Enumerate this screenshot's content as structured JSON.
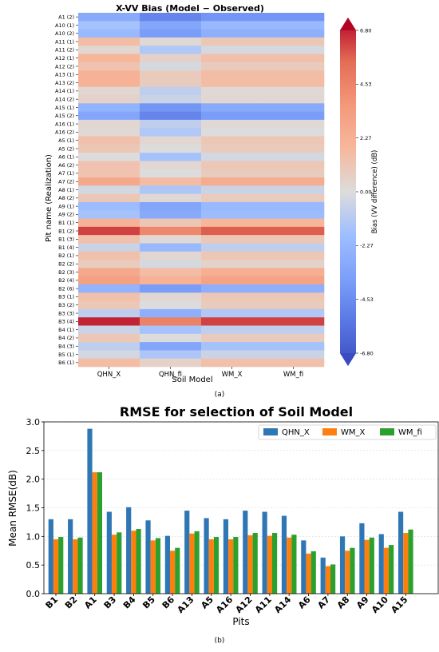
{
  "chart_data": [
    {
      "type": "heatmap",
      "title": "X-VV Bias (Model − Observed)",
      "xlabel": "Soil Model",
      "ylabel": "Pit name (Realization)",
      "columns": [
        "QHN_X",
        "QHN_fi",
        "WM_X",
        "WM_fi"
      ],
      "rows": [
        "A1 (2)",
        "A10 (1)",
        "A10 (2)",
        "A11 (1)",
        "A11 (2)",
        "A12 (1)",
        "A12 (2)",
        "A13 (1)",
        "A13 (2)",
        "A14 (1)",
        "A14 (2)",
        "A15 (1)",
        "A15 (2)",
        "A16 (1)",
        "A16 (2)",
        "A5 (1)",
        "A5 (2)",
        "A6 (1)",
        "A6 (2)",
        "A7 (1)",
        "A7 (2)",
        "A8 (1)",
        "A8 (2)",
        "A9 (1)",
        "A9 (2)",
        "B1 (1)",
        "B1 (2)",
        "B1 (3)",
        "B1 (4)",
        "B2 (1)",
        "B2 (2)",
        "B2 (3)",
        "B2 (4)",
        "B2 (6)",
        "B3 (1)",
        "B3 (2)",
        "B3 (3)",
        "B3 (4)",
        "B4 (1)",
        "B4 (2)",
        "B4 (3)",
        "B5 (1)",
        "B6 (1)"
      ],
      "values": [
        [
          -2.8,
          -4.5,
          -3.8,
          -3.8
        ],
        [
          -1.5,
          -3.0,
          -2.0,
          -2.0
        ],
        [
          -2.0,
          -3.5,
          -2.5,
          -2.5
        ],
        [
          1.5,
          0.2,
          1.0,
          1.0
        ],
        [
          0.3,
          -1.2,
          -0.2,
          -0.2
        ],
        [
          1.8,
          0.5,
          1.3,
          1.3
        ],
        [
          1.2,
          -0.2,
          0.8,
          0.8
        ],
        [
          2.0,
          0.8,
          1.5,
          1.5
        ],
        [
          2.0,
          0.8,
          1.5,
          1.5
        ],
        [
          0.3,
          -0.8,
          0.2,
          0.2
        ],
        [
          0.5,
          -0.5,
          0.3,
          0.3
        ],
        [
          -2.3,
          -3.8,
          -2.8,
          -2.8
        ],
        [
          -3.0,
          -4.5,
          -3.5,
          -3.5
        ],
        [
          0.3,
          -0.8,
          0.2,
          0.2
        ],
        [
          0.2,
          -1.2,
          0.0,
          0.0
        ],
        [
          1.3,
          0.3,
          1.0,
          1.0
        ],
        [
          1.0,
          0.0,
          0.8,
          0.8
        ],
        [
          0.0,
          -1.5,
          -0.3,
          -0.3
        ],
        [
          1.2,
          0.3,
          1.0,
          1.0
        ],
        [
          1.2,
          0.0,
          0.8,
          0.8
        ],
        [
          2.5,
          1.5,
          2.3,
          2.3
        ],
        [
          -0.3,
          -1.3,
          -0.5,
          -0.5
        ],
        [
          1.0,
          0.2,
          0.8,
          0.8
        ],
        [
          -1.8,
          -3.0,
          -2.0,
          -2.0
        ],
        [
          -1.5,
          -2.8,
          -1.8,
          -1.8
        ],
        [
          2.0,
          1.0,
          1.8,
          1.8
        ],
        [
          5.8,
          4.0,
          5.3,
          5.3
        ],
        [
          1.3,
          0.2,
          1.0,
          1.0
        ],
        [
          -0.5,
          -2.0,
          -0.8,
          -0.8
        ],
        [
          1.3,
          0.3,
          1.0,
          1.0
        ],
        [
          0.8,
          -0.2,
          0.5,
          0.5
        ],
        [
          2.5,
          1.5,
          2.2,
          2.2
        ],
        [
          3.0,
          2.0,
          2.8,
          2.8
        ],
        [
          -2.3,
          -3.5,
          -2.5,
          -2.5
        ],
        [
          1.3,
          0.3,
          1.0,
          1.0
        ],
        [
          1.0,
          0.0,
          0.8,
          0.8
        ],
        [
          -0.8,
          -2.5,
          -1.2,
          -1.2
        ],
        [
          6.3,
          4.3,
          5.8,
          5.8
        ],
        [
          -0.5,
          -1.5,
          -0.8,
          -0.8
        ],
        [
          1.0,
          0.0,
          0.8,
          0.8
        ],
        [
          -0.8,
          -3.0,
          -1.5,
          -1.5
        ],
        [
          -0.3,
          -1.3,
          -0.5,
          -0.5
        ],
        [
          1.5,
          0.5,
          1.3,
          1.3
        ]
      ],
      "colorbar": {
        "label": "Bias (VV difference) (dB)",
        "vmin": -6.8,
        "vmax": 6.8,
        "ticks": [
          6.8,
          4.53,
          2.27,
          0.0,
          -2.27,
          -4.53,
          -6.8
        ],
        "tick_labels": [
          "6.80",
          "4.53",
          "2.27",
          "0.00",
          "-2.27",
          "-4.53",
          "-6.80"
        ],
        "colormap": "coolwarm"
      },
      "caption": "(a)"
    },
    {
      "type": "bar",
      "title": "RMSE for selection of Soil Model",
      "xlabel": "Pits",
      "ylabel": "Mean RMSE(dB)",
      "ylim": [
        0,
        3.0
      ],
      "yticks": [
        "0.0",
        "0.5",
        "1.0",
        "1.5",
        "2.0",
        "2.5",
        "3.0"
      ],
      "grid": "y",
      "legend_position": "top-right",
      "categories": [
        "B1",
        "B2",
        "A1",
        "B3",
        "B4",
        "B5",
        "B6",
        "A13",
        "A5",
        "A16",
        "A12",
        "A11",
        "A14",
        "A6",
        "A7",
        "A8",
        "A9",
        "A10",
        "A15"
      ],
      "series": [
        {
          "name": "QHN_X",
          "color": "#2f77b4",
          "values": [
            1.3,
            1.3,
            2.88,
            1.43,
            1.51,
            1.28,
            1.01,
            1.45,
            1.32,
            1.3,
            1.45,
            1.43,
            1.36,
            0.93,
            0.63,
            1.0,
            1.23,
            1.04,
            1.43
          ]
        },
        {
          "name": "WM_X",
          "color": "#ff7f0e",
          "values": [
            0.95,
            0.95,
            2.12,
            1.03,
            1.1,
            0.93,
            0.75,
            1.05,
            0.95,
            0.95,
            1.02,
            1.01,
            0.98,
            0.7,
            0.48,
            0.75,
            0.94,
            0.8,
            1.06
          ]
        },
        {
          "name": "WM_fi",
          "color": "#2ca02c",
          "values": [
            0.99,
            0.98,
            2.12,
            1.07,
            1.13,
            0.97,
            0.8,
            1.09,
            0.99,
            0.99,
            1.06,
            1.06,
            1.03,
            0.74,
            0.51,
            0.8,
            0.98,
            0.85,
            1.12
          ]
        }
      ],
      "caption": "(b)"
    }
  ]
}
